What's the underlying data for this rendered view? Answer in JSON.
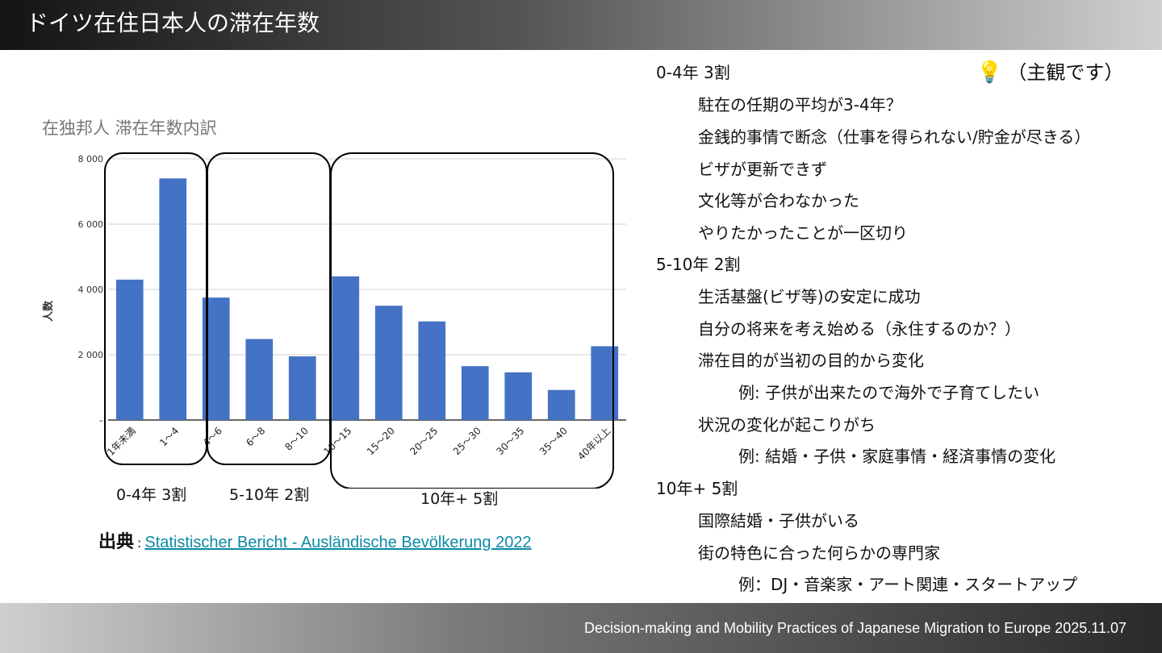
{
  "header": {
    "title": "ドイツ在住日本人の滞在年数"
  },
  "footer": {
    "text": "Decision-making and Mobility Practices of Japanese Migration to Europe 2025.11.07"
  },
  "chart_data": {
    "type": "bar",
    "title": "在独邦人  滞在年数内訳",
    "ylabel": "人数",
    "xlabel": "",
    "categories": [
      "1年未満",
      "1～4",
      "4～6",
      "6～8",
      "8～10",
      "10～15",
      "15～20",
      "20～25",
      "25～30",
      "30～35",
      "35～40",
      "40年以上"
    ],
    "values": [
      4300,
      7400,
      3750,
      2480,
      1950,
      4400,
      3500,
      3020,
      1650,
      1460,
      920,
      2260
    ],
    "ylim": [
      0,
      8000
    ],
    "yticks": [
      "–",
      "2 000",
      "4 000",
      "6 000",
      "8 000"
    ],
    "bar_color": "#4472c4",
    "grid": true,
    "annotations": [
      "0-4年 3割",
      "5-10年 2割",
      "10年+  5割"
    ]
  },
  "groups": {
    "g1": "0-4年 3割",
    "g2": "5-10年 2割",
    "g3": "10年+  5割"
  },
  "source": {
    "label": "出典",
    "sep": ":",
    "link_text": "Statistischer Bericht - Ausländische Bevölkerung 2022"
  },
  "note": {
    "icon": "lightbulb-icon",
    "text": "（主観です）"
  },
  "list": {
    "s1": "0-4年 3割",
    "s1_items": [
      "駐在の任期の平均が3-4年？",
      "金銭的事情で断念（仕事を得られない/貯金が尽きる）",
      "ビザが更新できず",
      "文化等が合わなかった",
      "やりたかったことが一区切り"
    ],
    "s2": "5-10年 2割",
    "s2_items": [
      "生活基盤(ビザ等)の安定に成功",
      "自分の将来を考え始める（永住するのか？）",
      "滞在目的が当初の目的から変化"
    ],
    "s2_ex1": "例: 子供が出来たので海外で子育てしたい",
    "s2_item4": "状況の変化が起こりがち",
    "s2_ex2": "例: 結婚・子供・家庭事情・経済事情の変化",
    "s3": "10年+ 5割",
    "s3_items": [
      "国際結婚・子供がいる",
      "街の特色に合った何らかの専門家"
    ],
    "s3_ex": "例：DJ・音楽家・アート関連・スタートアップ"
  }
}
